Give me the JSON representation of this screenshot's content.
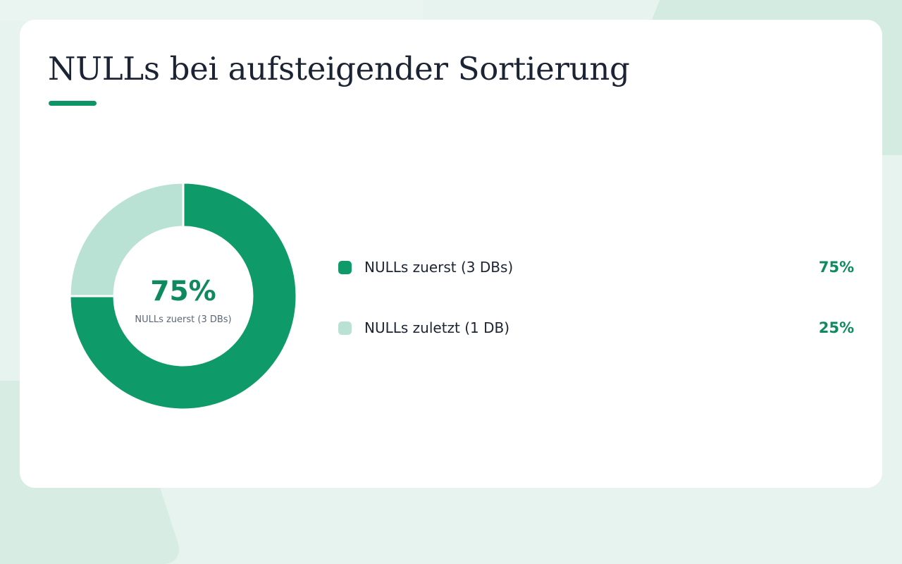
{
  "chart_data": {
    "type": "pie",
    "title": "NULLs bei aufsteigender Sortierung",
    "categories": [
      "NULLs zuerst (3 DBs)",
      "NULLs zuletzt (1 DB)"
    ],
    "values": [
      75,
      25
    ],
    "value_labels": [
      "75%",
      "25%"
    ],
    "colors": [
      "#0e9a69",
      "#b9e2d5"
    ],
    "center": {
      "value": "75%",
      "label": "NULLs zuerst (3 DBs)"
    },
    "legend_placement": "right"
  }
}
